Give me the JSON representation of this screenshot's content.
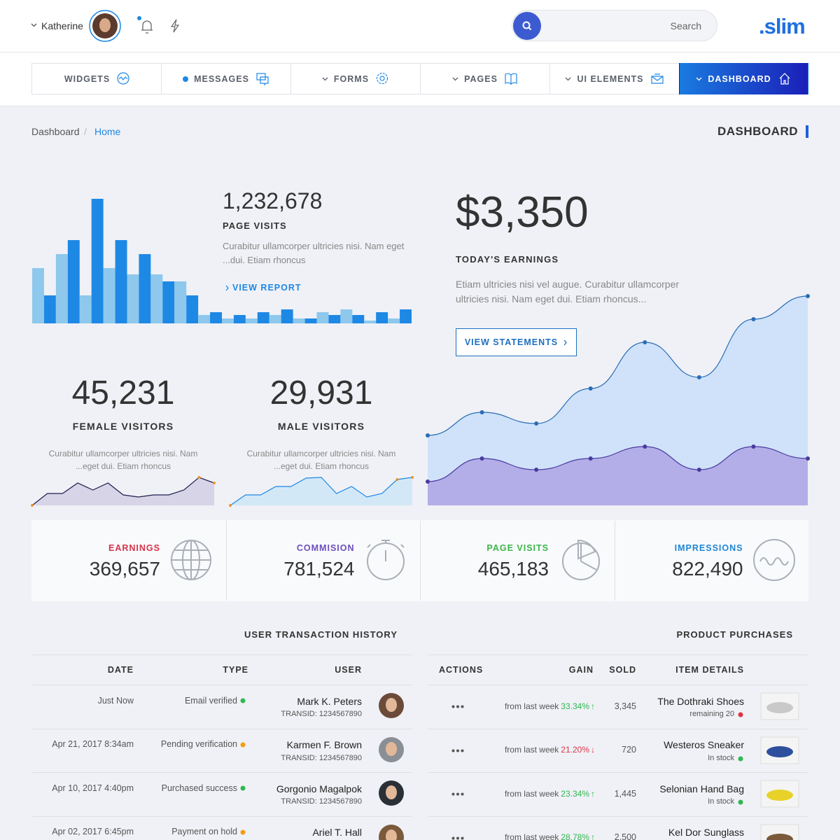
{
  "header": {
    "user": "Katherine",
    "search_placeholder": "Search",
    "logo": ".slim"
  },
  "nav": [
    {
      "label": "WIDGETS"
    },
    {
      "label": "MESSAGES",
      "badge_dot": true
    },
    {
      "label": "FORMS",
      "dropdown": true
    },
    {
      "label": "PAGES",
      "dropdown": true
    },
    {
      "label": "UI ELEMENTS",
      "dropdown": true
    },
    {
      "label": "DASHBOARD",
      "dropdown": true,
      "active": true
    }
  ],
  "breadcrumb": [
    "Dashboard",
    "Home"
  ],
  "page_title": "DASHBOARD",
  "page_visits": {
    "value": "1,232,678",
    "label": "PAGE VISITS",
    "description": "Curabitur ullamcorper ultricies nisi. Nam eget ...dui. Etiam rhoncus",
    "link": "VIEW REPORT",
    "bars": [
      79,
      40,
      99,
      119,
      40,
      178,
      79,
      119,
      70,
      99,
      70,
      60,
      60,
      40,
      12,
      16,
      7,
      12,
      7,
      16,
      12,
      20,
      7,
      7,
      16,
      12,
      20,
      12,
      4,
      16,
      7,
      20
    ],
    "colors": [
      "#8ec8ec",
      "#1e88e5"
    ]
  },
  "earnings": {
    "value": "$3,350",
    "label": "TODAY'S EARNINGS",
    "description": "Etiam ultricies nisi vel augue. Curabitur ullamcorper ultricies nisi. Nam eget dui. Etiam rhoncus...",
    "button": "VIEW STATEMENTS",
    "series": [
      {
        "values": [
          100,
          133,
          117,
          167,
          233,
          183,
          266,
          299
        ],
        "color": "#2a6db5",
        "fill": "#cfe2fa"
      },
      {
        "values": [
          34,
          67,
          51,
          67,
          84,
          51,
          84,
          67
        ],
        "color": "#4b3aa0",
        "fill": "#b3aee8"
      }
    ]
  },
  "female": {
    "value": "45,231",
    "label": "FEMALE VISITORS",
    "description": "Curabitur ullamcorper ultricies nisi. Nam ...eget dui. Etiam rhoncus",
    "values": [
      0,
      17,
      17,
      32,
      22,
      32,
      15,
      12,
      15,
      15,
      22,
      40,
      32
    ],
    "color": "#1f1f4f",
    "fill": "#d6d4e6"
  },
  "male": {
    "value": "29,931",
    "label": "MALE VISITORS",
    "description": "Curabitur ullamcorper ultricies nisi. Nam ...eget dui. Etiam rhoncus",
    "values": [
      0,
      15,
      15,
      27,
      27,
      39,
      40,
      17,
      27,
      12,
      17,
      37,
      40
    ],
    "color": "#1e88e5",
    "fill": "#d3e8f7"
  },
  "stats": [
    {
      "label": "EARNINGS",
      "value": "369,657",
      "color": "#d6334a"
    },
    {
      "label": "COMMISION",
      "value": "781,524",
      "color": "#6b4fbb"
    },
    {
      "label": "PAGE VISITS",
      "value": "465,183",
      "color": "#3bb54a"
    },
    {
      "label": "IMPRESSIONS",
      "value": "822,490",
      "color": "#1f87d6"
    }
  ],
  "transactions": {
    "title": "USER TRANSACTION HISTORY",
    "columns": [
      "DATE",
      "TYPE",
      "USER"
    ],
    "rows": [
      {
        "date": "Just Now",
        "type": "Email verified",
        "status_color": "#2fb84f",
        "user": "Mark K. Peters",
        "transid": "TRANSID: 1234567890"
      },
      {
        "date": "Apr 21, 2017 8:34am",
        "type": "Pending verification",
        "status_color": "#f39c12",
        "user": "Karmen F. Brown",
        "transid": "TRANSID: 1234567890"
      },
      {
        "date": "Apr 10, 2017 4:40pm",
        "type": "Purchased success",
        "status_color": "#2fb84f",
        "user": "Gorgonio Magalpok",
        "transid": "TRANSID: 1234567890"
      },
      {
        "date": "Apr 02, 2017 6:45pm",
        "type": "Payment on hold",
        "status_color": "#f39c12",
        "user": "Ariel T. Hall"
      }
    ]
  },
  "products": {
    "title": "PRODUCT PURCHASES",
    "columns": [
      "ACTIONS",
      "GAIN",
      "SOLD",
      "ITEM DETAILS"
    ],
    "rows": [
      {
        "gain_label": "from last week",
        "gain": "33.34%",
        "arrow": "↑",
        "gain_color": "#2fb84f",
        "sold": "3,345",
        "name": "The Dothraki Shoes",
        "status": "remaining 20",
        "status_color": "#dc3545"
      },
      {
        "gain_label": "from last week",
        "gain": "21.20%",
        "arrow": "↓",
        "gain_color": "#dc3545",
        "sold": "720",
        "name": "Westeros Sneaker",
        "status": "In stock",
        "status_color": "#2fb84f"
      },
      {
        "gain_label": "from last week",
        "gain": "23.34%",
        "arrow": "↑",
        "gain_color": "#2fb84f",
        "sold": "1,445",
        "name": "Selonian Hand Bag",
        "status": "In stock",
        "status_color": "#2fb84f"
      },
      {
        "gain_label": "from last week",
        "gain": "28.78%",
        "arrow": "↑",
        "gain_color": "#2fb84f",
        "sold": "2,500",
        "name": "Kel Dor Sunglass"
      }
    ]
  }
}
